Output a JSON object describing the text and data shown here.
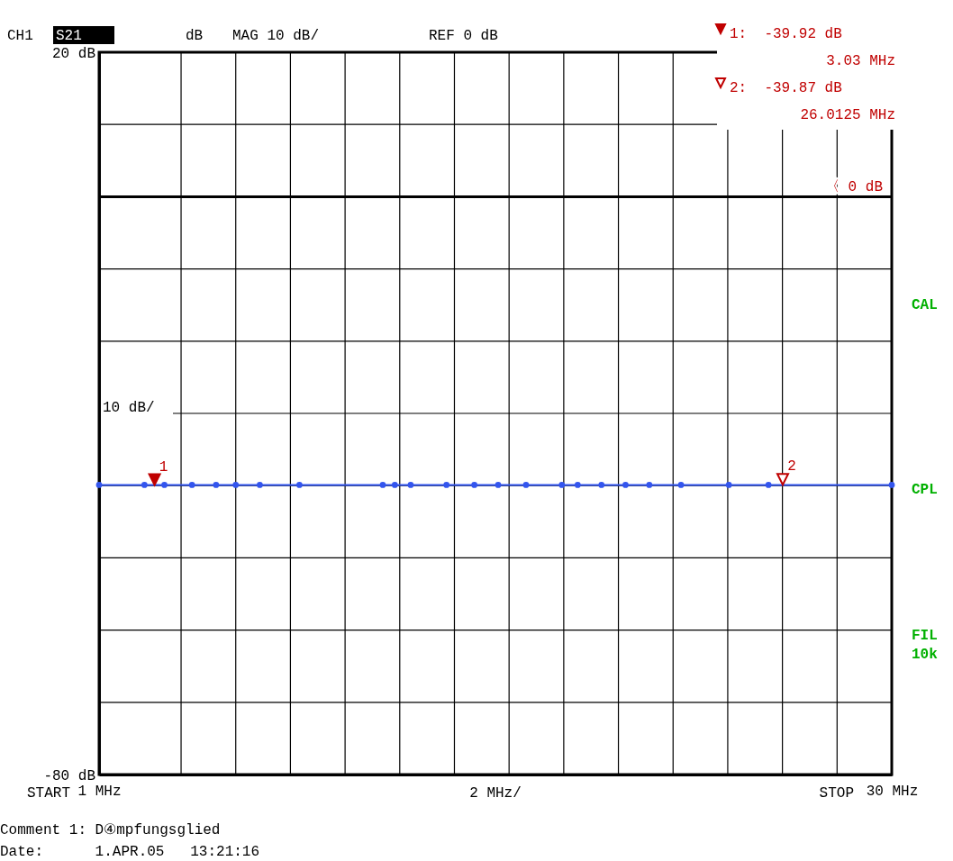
{
  "chart_data": {
    "type": "line",
    "x": [
      1,
      2.66,
      3.39,
      4.4,
      5.28,
      6.0,
      6.88,
      8.33,
      11.38,
      11.82,
      12.4,
      13.71,
      14.73,
      15.6,
      16.62,
      17.93,
      18.51,
      19.38,
      20.26,
      21.13,
      22.29,
      24.04,
      25.49,
      30
    ],
    "series": [
      {
        "color": "#3355ee",
        "values": [
          -39.9,
          -39.9,
          -39.9,
          -39.9,
          -39.9,
          -39.9,
          -39.9,
          -39.9,
          -39.9,
          -39.9,
          -39.9,
          -39.9,
          -39.9,
          -39.9,
          -39.9,
          -39.9,
          -39.9,
          -39.9,
          -39.9,
          -39.9,
          -39.9,
          -39.9,
          -39.9,
          -39.9
        ]
      }
    ],
    "xlim": [
      1,
      30
    ],
    "xticks": [
      {
        "value": 1,
        "label": "1 MHz"
      },
      {
        "value": 4,
        "label": null
      },
      {
        "value": 6,
        "label": null
      },
      {
        "value": 8,
        "label": null
      },
      {
        "value": 10,
        "label": null
      },
      {
        "value": 12,
        "label": null
      },
      {
        "value": 14,
        "label": null
      },
      {
        "value": 16,
        "label": null
      },
      {
        "value": 18,
        "label": null
      },
      {
        "value": 20,
        "label": null
      },
      {
        "value": 22,
        "label": null
      },
      {
        "value": 24,
        "label": null
      },
      {
        "value": 26,
        "label": null
      },
      {
        "value": 28,
        "label": null
      },
      {
        "value": 30,
        "label": "30 MHz"
      }
    ],
    "xlabel": "2 MHz/",
    "ylim": [
      -80,
      20
    ],
    "yticks": [
      {
        "value": 20,
        "label": "20 dB"
      },
      {
        "value": 10,
        "label": null
      },
      {
        "value": 0,
        "label": null
      },
      {
        "value": -10,
        "label": null
      },
      {
        "value": -20,
        "label": null
      },
      {
        "value": -30,
        "label": null
      },
      {
        "value": -40,
        "label": null
      },
      {
        "value": -50,
        "label": null
      },
      {
        "value": -60,
        "label": null
      },
      {
        "value": -70,
        "label": null
      },
      {
        "value": -80,
        "label": "-80 dB"
      }
    ],
    "grid": true,
    "marker": "circle",
    "line_style": "solid",
    "ref_lines": [
      {
        "axis": "y",
        "value": 0,
        "label": "〈 0 dB",
        "color": "#000000"
      }
    ],
    "annotations": [
      "CH1",
      "S21",
      "dB",
      "MAG 10 dB/",
      "REF 0 dB",
      "1:  -39.92 dB",
      "3.03 MHz",
      "2:  -39.87 dB",
      "26.0125 MHz",
      "10 dB/",
      "CAL",
      "CPL",
      "FIL",
      "10k",
      "Comment 1: D④mpfungsglied",
      "Date:      1.APR.05   13:21:16",
      "START",
      "STOP",
      {
        "text": "1",
        "x": 3.03,
        "y": -39.92
      },
      {
        "text": "2",
        "x": 26.0125,
        "y": -39.87
      }
    ]
  }
}
